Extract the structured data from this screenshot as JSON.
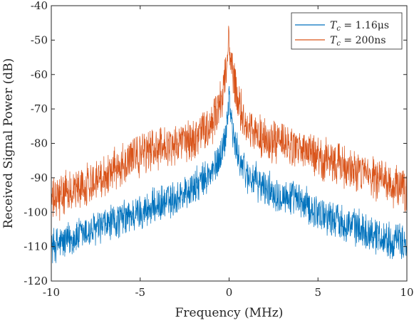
{
  "chart_data": {
    "type": "line",
    "title": "",
    "xlabel": "Frequency (MHz)",
    "ylabel": "Received Signal Power (dB)",
    "xlim": [
      -10,
      10
    ],
    "ylim": [
      -120,
      -40
    ],
    "xticks": [
      -10,
      -5,
      0,
      5,
      10
    ],
    "xtick_labels": [
      "-10",
      "-5",
      "0",
      "5",
      "10"
    ],
    "yticks": [
      -120,
      -110,
      -100,
      -90,
      -80,
      -70,
      -60,
      -50,
      -40
    ],
    "ytick_labels": [
      "-120",
      "-110",
      "-100",
      "-90",
      "-80",
      "-70",
      "-60",
      "-50",
      "-40"
    ],
    "grid": false,
    "legend_position": "top-right",
    "series": [
      {
        "name": "T_c = 1.16μs",
        "legend_main": "T",
        "legend_sub": "c",
        "legend_rest": " = 1.16μs",
        "color": "#0072BD",
        "envelope": {
          "x": [
            -10,
            -9,
            -8,
            -7,
            -6,
            -5,
            -4,
            -3,
            -2,
            -1.5,
            -1,
            -0.7,
            -0.4,
            -0.2,
            -0.1,
            0,
            0.1,
            0.2,
            0.4,
            0.7,
            1,
            1.5,
            2,
            3,
            4,
            5,
            6,
            7,
            8,
            9,
            10
          ],
          "y": [
            -110,
            -108,
            -106,
            -104,
            -102,
            -100,
            -98,
            -96,
            -93,
            -91,
            -89,
            -86,
            -82,
            -78,
            -72,
            -66,
            -71,
            -77,
            -82,
            -86,
            -89,
            -91,
            -93,
            -95,
            -97,
            -100,
            -102,
            -104,
            -106,
            -108,
            -109
          ]
        },
        "noise_spread_db": 6
      },
      {
        "name": "T_c = 200ns",
        "legend_main": "T",
        "legend_sub": "c",
        "legend_rest": " = 200ns",
        "color": "#D95319",
        "envelope": {
          "x": [
            -10,
            -9,
            -8,
            -7,
            -6,
            -5,
            -4,
            -3,
            -2,
            -1.5,
            -1,
            -0.7,
            -0.4,
            -0.2,
            -0.1,
            0,
            0.1,
            0.2,
            0.4,
            0.7,
            1,
            1.5,
            2,
            3,
            4,
            5,
            6,
            7,
            8,
            9,
            10
          ],
          "y": [
            -97,
            -94,
            -92,
            -89,
            -86,
            -83,
            -81,
            -80,
            -79,
            -77,
            -75,
            -71,
            -66,
            -60,
            -55,
            -50,
            -55,
            -60,
            -66,
            -71,
            -75,
            -77,
            -79,
            -80,
            -82,
            -84,
            -86,
            -88,
            -90,
            -92,
            -94
          ]
        },
        "noise_spread_db": 7
      }
    ]
  }
}
